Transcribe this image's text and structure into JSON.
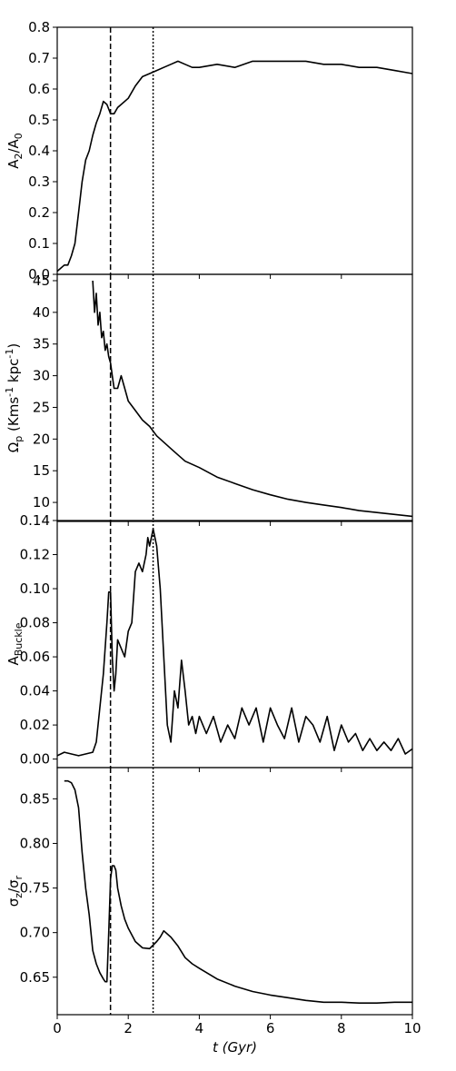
{
  "chart_data": [
    {
      "type": "line",
      "ylabel": "A_2/A_0",
      "xlim": [
        0,
        10
      ],
      "ylim": [
        0,
        0.8
      ],
      "yticks": [
        0.0,
        0.1,
        0.2,
        0.3,
        0.4,
        0.5,
        0.6,
        0.7,
        0.8
      ],
      "ytick_labels": [
        "0.0",
        "0.1",
        "0.2",
        "0.3",
        "0.4",
        "0.5",
        "0.6",
        "0.7",
        "0.8"
      ],
      "vlines": [
        {
          "x": 1.5,
          "style": "dashed"
        },
        {
          "x": 2.7,
          "style": "dotted"
        }
      ],
      "x": [
        0.0,
        0.2,
        0.3,
        0.4,
        0.5,
        0.6,
        0.7,
        0.8,
        0.9,
        1.0,
        1.1,
        1.2,
        1.3,
        1.4,
        1.5,
        1.6,
        1.7,
        1.8,
        2.0,
        2.2,
        2.4,
        2.6,
        2.8,
        3.0,
        3.2,
        3.4,
        3.6,
        3.8,
        4.0,
        4.5,
        5.0,
        5.5,
        6.0,
        6.5,
        7.0,
        7.5,
        8.0,
        8.5,
        9.0,
        9.5,
        10.0
      ],
      "y": [
        0.01,
        0.03,
        0.03,
        0.06,
        0.1,
        0.2,
        0.3,
        0.37,
        0.4,
        0.45,
        0.49,
        0.52,
        0.56,
        0.55,
        0.52,
        0.52,
        0.54,
        0.55,
        0.57,
        0.61,
        0.64,
        0.65,
        0.66,
        0.67,
        0.68,
        0.69,
        0.68,
        0.67,
        0.67,
        0.68,
        0.67,
        0.69,
        0.69,
        0.69,
        0.69,
        0.68,
        0.68,
        0.67,
        0.67,
        0.66,
        0.65
      ]
    },
    {
      "type": "line",
      "ylabel": "Ω_p (Kms^-1 kpc^-1)",
      "xlim": [
        0,
        10
      ],
      "ylim": [
        7,
        46
      ],
      "yticks": [
        10,
        15,
        20,
        25,
        30,
        35,
        40,
        45
      ],
      "ytick_labels": [
        "10",
        "15",
        "20",
        "25",
        "30",
        "35",
        "40",
        "45"
      ],
      "vlines": [
        {
          "x": 1.5,
          "style": "dashed"
        },
        {
          "x": 2.7,
          "style": "dotted"
        }
      ],
      "x": [
        1.0,
        1.05,
        1.1,
        1.15,
        1.2,
        1.25,
        1.3,
        1.35,
        1.4,
        1.45,
        1.5,
        1.55,
        1.6,
        1.7,
        1.8,
        1.9,
        2.0,
        2.2,
        2.4,
        2.6,
        2.8,
        3.0,
        3.3,
        3.6,
        4.0,
        4.5,
        5.0,
        5.5,
        6.0,
        6.5,
        7.0,
        7.5,
        8.0,
        8.5,
        9.0,
        9.5,
        10.0
      ],
      "y": [
        45,
        40,
        43,
        38,
        40,
        36,
        37,
        34,
        35,
        33,
        32,
        30,
        28,
        28,
        30,
        28,
        26,
        24.5,
        23,
        22,
        20.5,
        19.5,
        18,
        16.5,
        15.5,
        14,
        13,
        12,
        11.2,
        10.5,
        10,
        9.6,
        9.2,
        8.7,
        8.4,
        8.1,
        7.8
      ]
    },
    {
      "type": "line",
      "ylabel": "A_Buckle",
      "xlim": [
        0,
        10
      ],
      "ylim": [
        -0.005,
        0.14
      ],
      "yticks": [
        0.0,
        0.02,
        0.04,
        0.06,
        0.08,
        0.1,
        0.12,
        0.14
      ],
      "ytick_labels": [
        "0.00",
        "0.02",
        "0.04",
        "0.06",
        "0.08",
        "0.10",
        "0.12",
        "0.14"
      ],
      "vlines": [
        {
          "x": 1.5,
          "style": "dashed"
        },
        {
          "x": 2.7,
          "style": "dotted"
        }
      ],
      "x": [
        0.0,
        0.2,
        0.4,
        0.6,
        0.8,
        1.0,
        1.1,
        1.2,
        1.3,
        1.4,
        1.45,
        1.5,
        1.55,
        1.6,
        1.65,
        1.7,
        1.8,
        1.9,
        2.0,
        2.1,
        2.2,
        2.3,
        2.4,
        2.5,
        2.55,
        2.6,
        2.7,
        2.8,
        2.9,
        3.0,
        3.1,
        3.2,
        3.3,
        3.4,
        3.5,
        3.6,
        3.7,
        3.8,
        3.9,
        4.0,
        4.2,
        4.4,
        4.6,
        4.8,
        5.0,
        5.2,
        5.4,
        5.6,
        5.8,
        6.0,
        6.2,
        6.4,
        6.6,
        6.8,
        7.0,
        7.2,
        7.4,
        7.6,
        7.8,
        8.0,
        8.2,
        8.4,
        8.6,
        8.8,
        9.0,
        9.2,
        9.4,
        9.6,
        9.8,
        10.0
      ],
      "y": [
        0.002,
        0.004,
        0.003,
        0.002,
        0.003,
        0.004,
        0.01,
        0.03,
        0.05,
        0.08,
        0.098,
        0.098,
        0.06,
        0.04,
        0.05,
        0.07,
        0.065,
        0.06,
        0.075,
        0.08,
        0.11,
        0.115,
        0.11,
        0.12,
        0.13,
        0.125,
        0.135,
        0.125,
        0.1,
        0.06,
        0.02,
        0.01,
        0.04,
        0.03,
        0.058,
        0.04,
        0.02,
        0.025,
        0.015,
        0.025,
        0.015,
        0.025,
        0.01,
        0.02,
        0.012,
        0.03,
        0.02,
        0.03,
        0.01,
        0.03,
        0.02,
        0.012,
        0.03,
        0.01,
        0.025,
        0.02,
        0.01,
        0.025,
        0.005,
        0.02,
        0.01,
        0.015,
        0.005,
        0.012,
        0.005,
        0.01,
        0.005,
        0.012,
        0.003,
        0.006
      ]
    },
    {
      "type": "line",
      "ylabel": "σ_z/σ_r",
      "xlabel": "t (Gyr)",
      "xlim": [
        0,
        10
      ],
      "ylim": [
        0.608,
        0.885
      ],
      "yticks": [
        0.65,
        0.7,
        0.75,
        0.8,
        0.85
      ],
      "ytick_labels": [
        "0.65",
        "0.70",
        "0.75",
        "0.80",
        "0.85"
      ],
      "xticks": [
        0,
        2,
        4,
        6,
        8,
        10
      ],
      "xtick_labels": [
        "0",
        "2",
        "4",
        "6",
        "8",
        "10"
      ],
      "vlines": [
        {
          "x": 1.5,
          "style": "dashed"
        },
        {
          "x": 2.7,
          "style": "dotted"
        }
      ],
      "x": [
        0.2,
        0.3,
        0.4,
        0.5,
        0.6,
        0.7,
        0.8,
        0.9,
        1.0,
        1.1,
        1.2,
        1.3,
        1.35,
        1.4,
        1.45,
        1.5,
        1.55,
        1.6,
        1.65,
        1.7,
        1.8,
        1.9,
        2.0,
        2.2,
        2.4,
        2.6,
        2.8,
        2.9,
        3.0,
        3.2,
        3.4,
        3.6,
        3.8,
        4.0,
        4.5,
        5.0,
        5.5,
        6.0,
        6.5,
        7.0,
        7.5,
        8.0,
        8.5,
        9.0,
        9.5,
        10.0
      ],
      "y": [
        0.87,
        0.87,
        0.868,
        0.86,
        0.84,
        0.79,
        0.75,
        0.72,
        0.68,
        0.665,
        0.655,
        0.648,
        0.645,
        0.645,
        0.7,
        0.76,
        0.775,
        0.775,
        0.77,
        0.75,
        0.73,
        0.715,
        0.705,
        0.69,
        0.683,
        0.682,
        0.69,
        0.695,
        0.702,
        0.695,
        0.685,
        0.672,
        0.665,
        0.66,
        0.648,
        0.64,
        0.634,
        0.63,
        0.627,
        0.624,
        0.622,
        0.622,
        0.621,
        0.621,
        0.622,
        0.622
      ]
    }
  ]
}
